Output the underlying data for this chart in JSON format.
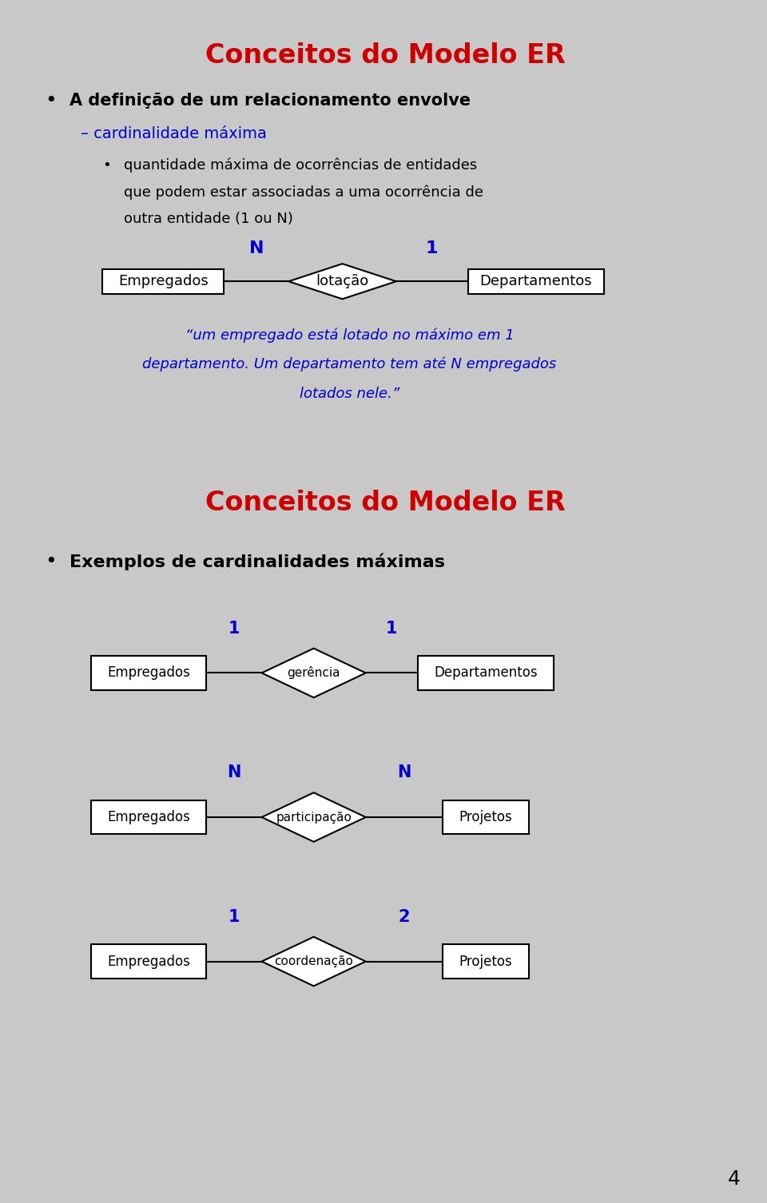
{
  "panel1": {
    "title": "Conceitos do Modelo ER",
    "title_color": "#CC0000",
    "bullet1": "A definição de um relacionamento envolve",
    "sub1": "– cardinalidade máxima",
    "sub1_color": "#0000CC",
    "sub2_line1": "quantidade máxima de ocorrências de entidades",
    "sub2_line2": "que podem estar associadas a uma ocorrência de",
    "sub2_line3": "outra entidade (1 ou N)",
    "diagram": {
      "left_box": "Empregados",
      "diamond": "lotação",
      "right_box": "Departamentos",
      "left_label": "N",
      "right_label": "1"
    },
    "caption_line1": "“um empregado está lotado no máximo em 1",
    "caption_line2": "departamento. Um departamento tem até N empregados",
    "caption_line3": "lotados nele.”",
    "caption_color": "#0000CC"
  },
  "panel2": {
    "title": "Conceitos do Modelo ER",
    "title_color": "#CC0000",
    "bullet1": "Exemplos de cardinalidades máximas",
    "diagrams": [
      {
        "left_box": "Empregados",
        "diamond": "gerência",
        "right_box": "Departamentos",
        "left_label": "1",
        "right_label": "1"
      },
      {
        "left_box": "Empregados",
        "diamond": "participação",
        "right_box": "Projetos",
        "left_label": "N",
        "right_label": "N"
      },
      {
        "left_box": "Empregados",
        "diamond": "coordenação",
        "right_box": "Projetos",
        "left_label": "1",
        "right_label": "2"
      }
    ]
  },
  "outer_bg": "#C8C8C8",
  "panel_bg": "#FFFFFF",
  "page_number": "4"
}
